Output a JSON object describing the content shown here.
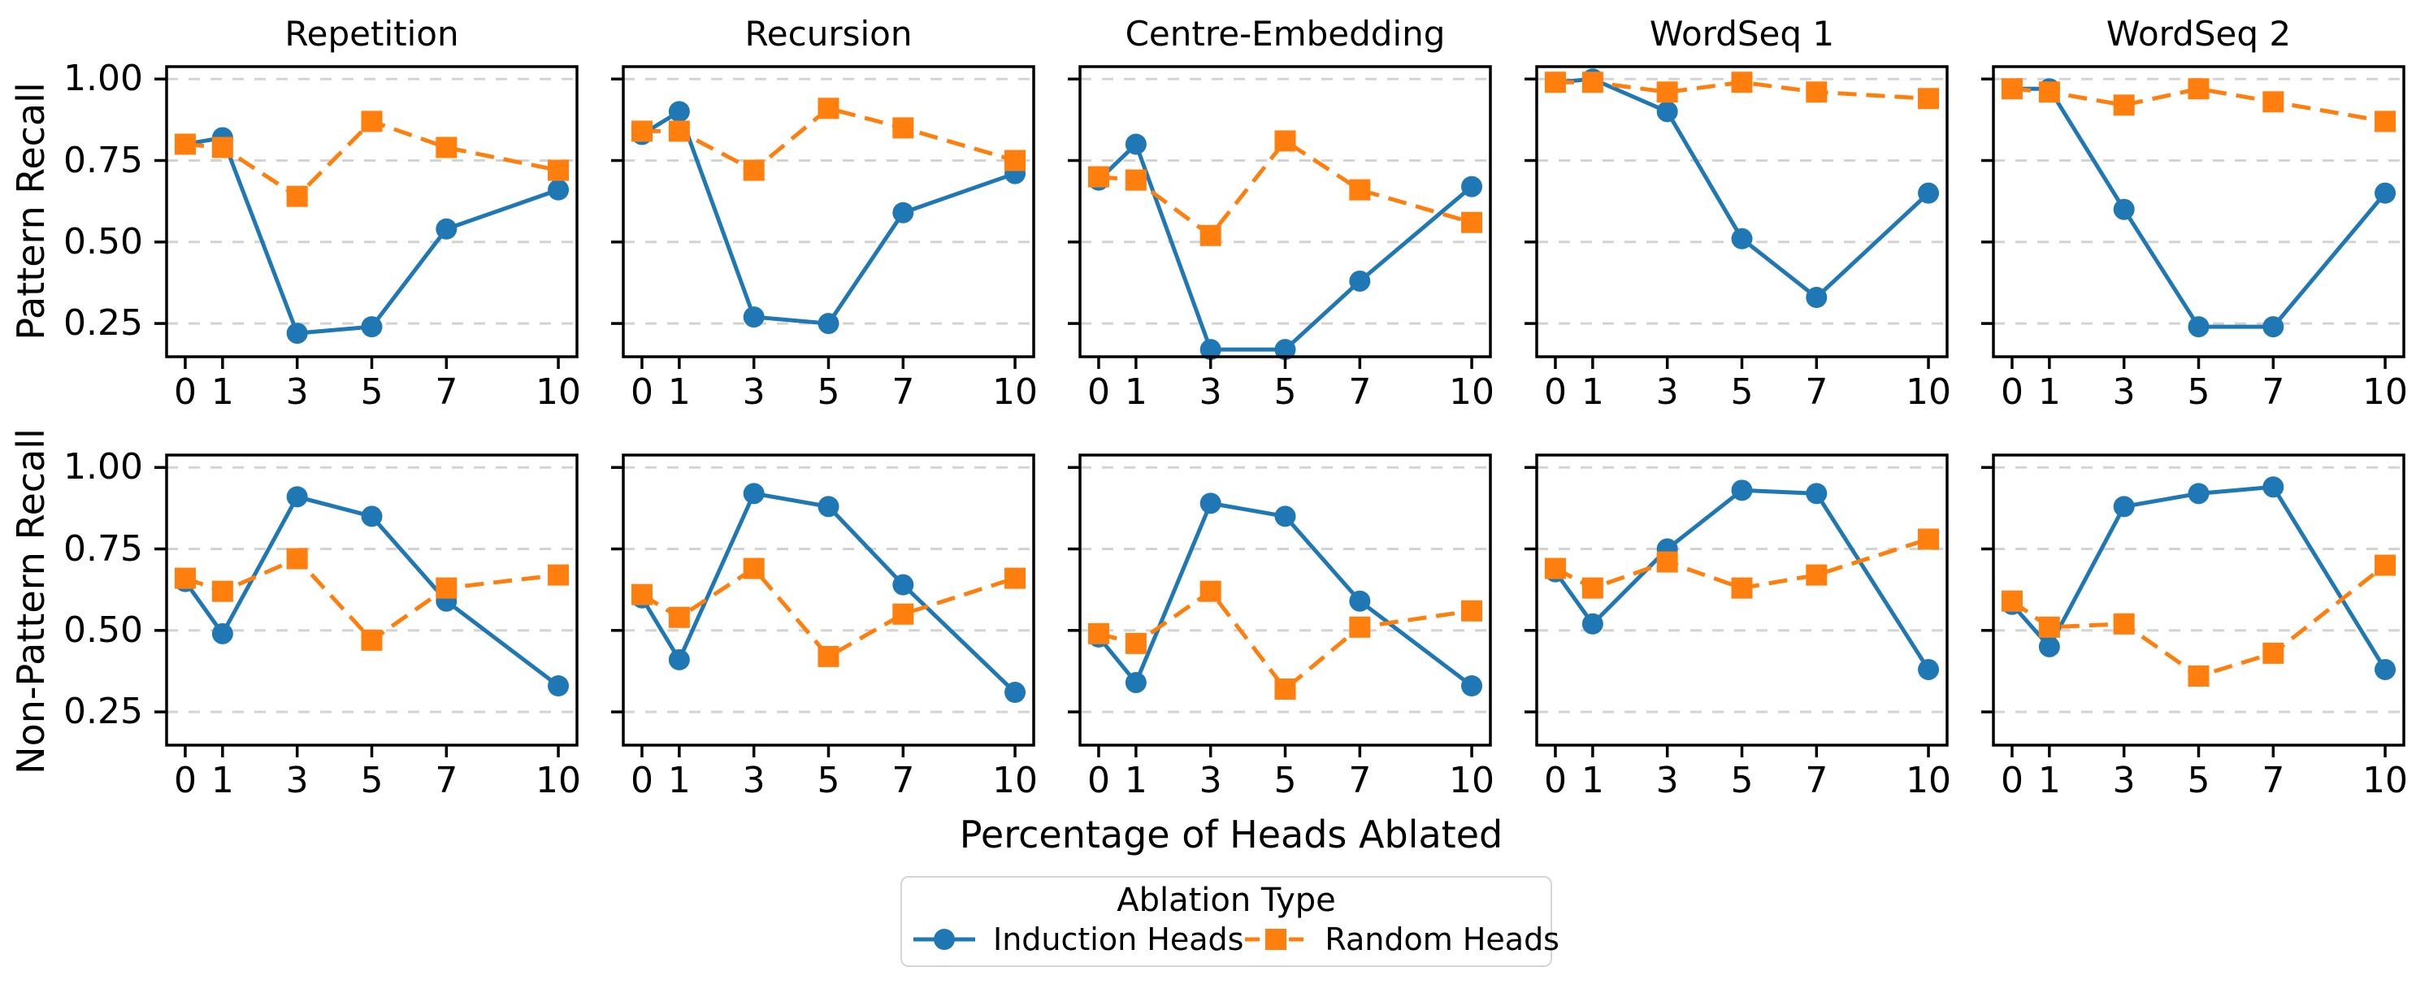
{
  "chart_data": {
    "type": "line",
    "x": [
      0,
      1,
      3,
      5,
      7,
      10
    ],
    "xtick_labels": [
      "0",
      "1",
      "3",
      "5",
      "7",
      "10"
    ],
    "ytick_values": [
      0.25,
      0.5,
      0.75,
      1.0
    ],
    "ytick_labels": [
      "0.25",
      "0.50",
      "0.75",
      "1.00"
    ],
    "xlim": [
      -0.5,
      10.5
    ],
    "ylim": [
      0.148,
      1.038
    ],
    "grid": "horizontal dashed gridlines at y ticks",
    "xlabel": "Percentage of Heads Ablated",
    "colors": {
      "induction": "#1f77b4",
      "random": "#ff7f0e",
      "gridline": "#d3d3d3",
      "spine": "#000000",
      "legend_border": "#d5d5d5"
    },
    "legend": {
      "title": "Ablation Type",
      "position": "bottom-center",
      "entries": [
        {
          "label": "Induction Heads",
          "color": "#1f77b4",
          "marker": "circle",
          "line": "solid"
        },
        {
          "label": "Random Heads",
          "color": "#ff7f0e",
          "marker": "square",
          "line": "dashed"
        }
      ]
    },
    "rows": [
      {
        "ylabel": "Pattern Recall",
        "panels": [
          {
            "title": "Repetition",
            "series": [
              {
                "name": "Induction Heads",
                "values": [
                  0.8,
                  0.82,
                  0.22,
                  0.24,
                  0.54,
                  0.66
                ]
              },
              {
                "name": "Random Heads",
                "values": [
                  0.8,
                  0.79,
                  0.64,
                  0.87,
                  0.79,
                  0.72
                ]
              }
            ]
          },
          {
            "title": "Recursion",
            "series": [
              {
                "name": "Induction Heads",
                "values": [
                  0.83,
                  0.9,
                  0.27,
                  0.25,
                  0.59,
                  0.71
                ]
              },
              {
                "name": "Random Heads",
                "values": [
                  0.84,
                  0.84,
                  0.72,
                  0.91,
                  0.85,
                  0.75
                ]
              }
            ]
          },
          {
            "title": "Centre-Embedding",
            "series": [
              {
                "name": "Induction Heads",
                "values": [
                  0.69,
                  0.8,
                  0.17,
                  0.17,
                  0.38,
                  0.67
                ]
              },
              {
                "name": "Random Heads",
                "values": [
                  0.7,
                  0.69,
                  0.52,
                  0.81,
                  0.66,
                  0.56
                ]
              }
            ]
          },
          {
            "title": "WordSeq 1",
            "series": [
              {
                "name": "Induction Heads",
                "values": [
                  0.99,
                  1.0,
                  0.9,
                  0.51,
                  0.33,
                  0.65
                ]
              },
              {
                "name": "Random Heads",
                "values": [
                  0.99,
                  0.99,
                  0.96,
                  0.99,
                  0.96,
                  0.94
                ]
              }
            ]
          },
          {
            "title": "WordSeq 2",
            "series": [
              {
                "name": "Induction Heads",
                "values": [
                  0.97,
                  0.97,
                  0.6,
                  0.24,
                  0.24,
                  0.65
                ]
              },
              {
                "name": "Random Heads",
                "values": [
                  0.97,
                  0.96,
                  0.92,
                  0.97,
                  0.93,
                  0.87
                ]
              }
            ]
          }
        ]
      },
      {
        "ylabel": "Non-Pattern Recall",
        "panels": [
          {
            "title": "Repetition",
            "series": [
              {
                "name": "Induction Heads",
                "values": [
                  0.65,
                  0.49,
                  0.91,
                  0.85,
                  0.59,
                  0.33
                ]
              },
              {
                "name": "Random Heads",
                "values": [
                  0.66,
                  0.62,
                  0.72,
                  0.47,
                  0.63,
                  0.67
                ]
              }
            ]
          },
          {
            "title": "Recursion",
            "series": [
              {
                "name": "Induction Heads",
                "values": [
                  0.6,
                  0.41,
                  0.92,
                  0.88,
                  0.64,
                  0.31
                ]
              },
              {
                "name": "Random Heads",
                "values": [
                  0.61,
                  0.54,
                  0.69,
                  0.42,
                  0.55,
                  0.66
                ]
              }
            ]
          },
          {
            "title": "Centre-Embedding",
            "series": [
              {
                "name": "Induction Heads",
                "values": [
                  0.48,
                  0.34,
                  0.89,
                  0.85,
                  0.59,
                  0.33
                ]
              },
              {
                "name": "Random Heads",
                "values": [
                  0.49,
                  0.46,
                  0.62,
                  0.32,
                  0.51,
                  0.56
                ]
              }
            ]
          },
          {
            "title": "WordSeq 1",
            "series": [
              {
                "name": "Induction Heads",
                "values": [
                  0.68,
                  0.52,
                  0.75,
                  0.93,
                  0.92,
                  0.38
                ]
              },
              {
                "name": "Random Heads",
                "values": [
                  0.69,
                  0.63,
                  0.71,
                  0.63,
                  0.67,
                  0.78
                ]
              }
            ]
          },
          {
            "title": "WordSeq 2",
            "series": [
              {
                "name": "Induction Heads",
                "values": [
                  0.58,
                  0.45,
                  0.88,
                  0.92,
                  0.94,
                  0.38
                ]
              },
              {
                "name": "Random Heads",
                "values": [
                  0.59,
                  0.51,
                  0.52,
                  0.36,
                  0.43,
                  0.7
                ]
              }
            ]
          }
        ]
      }
    ]
  }
}
